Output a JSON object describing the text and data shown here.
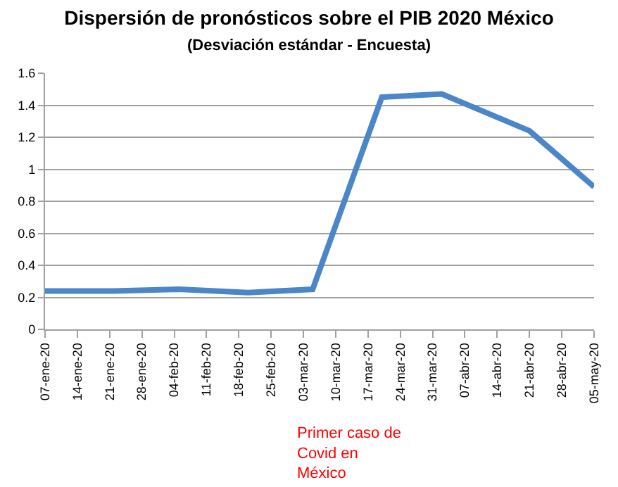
{
  "chart_data": {
    "type": "line",
    "title": "Dispersión de pronósticos sobre el PIB 2020 México",
    "subtitle": "(Desviación estándar - Encuesta)",
    "x": [
      "2020-01-07",
      "2020-01-22",
      "2020-02-05",
      "2020-02-20",
      "2020-03-05",
      "2020-03-20",
      "2020-04-02",
      "2020-04-21",
      "2020-05-05"
    ],
    "series": [
      {
        "color": "#4a86c8",
        "values": [
          0.24,
          0.24,
          0.25,
          0.23,
          0.25,
          1.45,
          1.47,
          1.24,
          0.89
        ]
      }
    ],
    "xlim": [
      "2020-01-07",
      "2020-05-05"
    ],
    "xticks": [
      {
        "value": "2020-01-07",
        "label": "07-ene-20"
      },
      {
        "value": "2020-01-14",
        "label": "14-ene-20"
      },
      {
        "value": "2020-01-21",
        "label": "21-ene-20"
      },
      {
        "value": "2020-01-28",
        "label": "28-ene-20"
      },
      {
        "value": "2020-02-04",
        "label": "04-feb-20"
      },
      {
        "value": "2020-02-11",
        "label": "11-feb-20"
      },
      {
        "value": "2020-02-18",
        "label": "18-feb-20"
      },
      {
        "value": "2020-02-25",
        "label": "25-feb-20"
      },
      {
        "value": "2020-03-03",
        "label": "03-mar-20"
      },
      {
        "value": "2020-03-10",
        "label": "10-mar-20"
      },
      {
        "value": "2020-03-17",
        "label": "17-mar-20"
      },
      {
        "value": "2020-03-24",
        "label": "24-mar-20"
      },
      {
        "value": "2020-03-31",
        "label": "31-mar-20"
      },
      {
        "value": "2020-04-07",
        "label": "07-abr-20"
      },
      {
        "value": "2020-04-14",
        "label": "14-abr-20"
      },
      {
        "value": "2020-04-21",
        "label": "21-abr-20"
      },
      {
        "value": "2020-04-28",
        "label": "28-abr-20"
      },
      {
        "value": "2020-05-05",
        "label": "05-may-20"
      }
    ],
    "ylim": [
      0,
      1.6
    ],
    "yticks": [
      0,
      0.2,
      0.4,
      0.6,
      0.8,
      1,
      1.2,
      1.4,
      1.6
    ],
    "grid": "y",
    "marker": "none",
    "line_style": "solid",
    "legend": false,
    "annotations": [
      "Primer caso de Covid en México"
    ]
  }
}
